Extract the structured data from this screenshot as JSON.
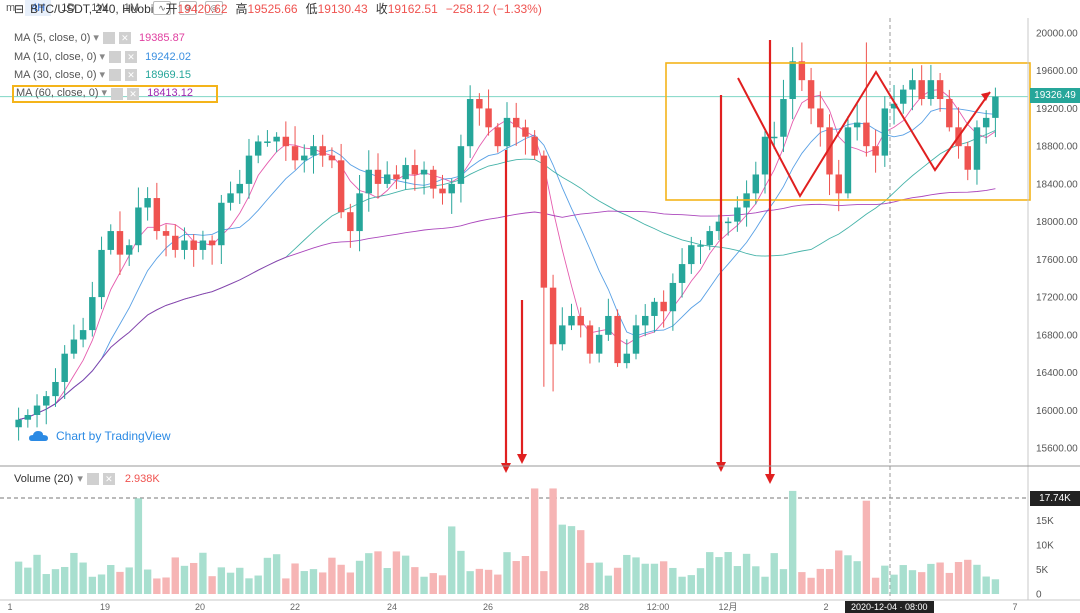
{
  "toolbar": {
    "items": [
      {
        "label": "m",
        "active": false
      },
      {
        "label": "4H",
        "active": true
      },
      {
        "label": "1D",
        "active": false
      },
      {
        "label": "1W",
        "active": false
      },
      {
        "label": "1M",
        "active": false
      }
    ]
  },
  "header": {
    "symbol": "BTC/USDT, 240, Huobi",
    "open_key": "开",
    "open": "19420.62",
    "high_key": "高",
    "high": "19525.66",
    "low_key": "低",
    "low": "19130.43",
    "close_key": "收",
    "close": "19162.51",
    "change": "−258.12 (−1.33%)"
  },
  "indicators": [
    {
      "label": "MA (5, close, 0)",
      "value": "19385.87",
      "color": "#e040a0"
    },
    {
      "label": "MA (10, close, 0)",
      "value": "19242.02",
      "color": "#3b8fe0"
    },
    {
      "label": "MA (30, close, 0)",
      "value": "18969.15",
      "color": "#26a69a"
    },
    {
      "label": "MA (60, close, 0)",
      "value": "18413.12",
      "color": "#9c27b0"
    }
  ],
  "volume": {
    "label": "Volume (20)",
    "value": "2.938K"
  },
  "watermark": "Chart by TradingView",
  "price_axis": [
    "20000.00",
    "19600.00",
    "19200.00",
    "18800.00",
    "18400.00",
    "18000.00",
    "17600.00",
    "17200.00",
    "16800.00",
    "16400.00",
    "16000.00",
    "15600.00"
  ],
  "volume_axis": [
    "20K",
    "15K",
    "10K",
    "5K",
    "0"
  ],
  "last_price": "19326.49",
  "volume_line_tag": "17.74K",
  "time_axis": [
    "1",
    "19",
    "20",
    "22",
    "24",
    "26",
    "28",
    "12:00",
    "12月",
    "2",
    "2020-12-04 · 08:00",
    "7"
  ],
  "colors": {
    "up": "#26a69a",
    "down": "#ef5350",
    "vol_up": "#a8dfcf",
    "vol_down": "#f6b5b5",
    "highlight": "#f4b41a",
    "arrow": "#e02020",
    "last_price_bg": "#26a69a"
  },
  "chart_data": {
    "type": "candlestick",
    "symbol": "BTC/USDT",
    "interval": "240",
    "exchange": "Huobi",
    "ylim": [
      15400,
      20200
    ],
    "approx_closes": [
      15900,
      15950,
      16050,
      16150,
      16300,
      16600,
      16750,
      16850,
      17200,
      17700,
      17900,
      17650,
      17750,
      18150,
      18250,
      17900,
      17850,
      17700,
      17800,
      17700,
      17800,
      17750,
      18200,
      18300,
      18400,
      18700,
      18850,
      18850,
      18900,
      18800,
      18650,
      18700,
      18800,
      18700,
      18650,
      18100,
      17900,
      18300,
      18550,
      18400,
      18500,
      18450,
      18600,
      18500,
      18550,
      18350,
      18300,
      18400,
      18800,
      19300,
      19200,
      19000,
      18800,
      19100,
      19000,
      18900,
      18700,
      17300,
      16700,
      16900,
      17000,
      16900,
      16600,
      16800,
      17000,
      16500,
      16600,
      16900,
      17000,
      17150,
      17050,
      17350,
      17550,
      17750,
      17750,
      17900,
      18000,
      18000,
      18150,
      18300,
      18500,
      18900,
      18900,
      19300,
      19700,
      19500,
      19200,
      19000,
      18500,
      18300,
      19000,
      19050,
      18800,
      18700,
      19200,
      19250,
      19400,
      19500,
      19300,
      19500,
      19300,
      19000,
      18800,
      18550,
      19000,
      19100,
      19326
    ]
  }
}
